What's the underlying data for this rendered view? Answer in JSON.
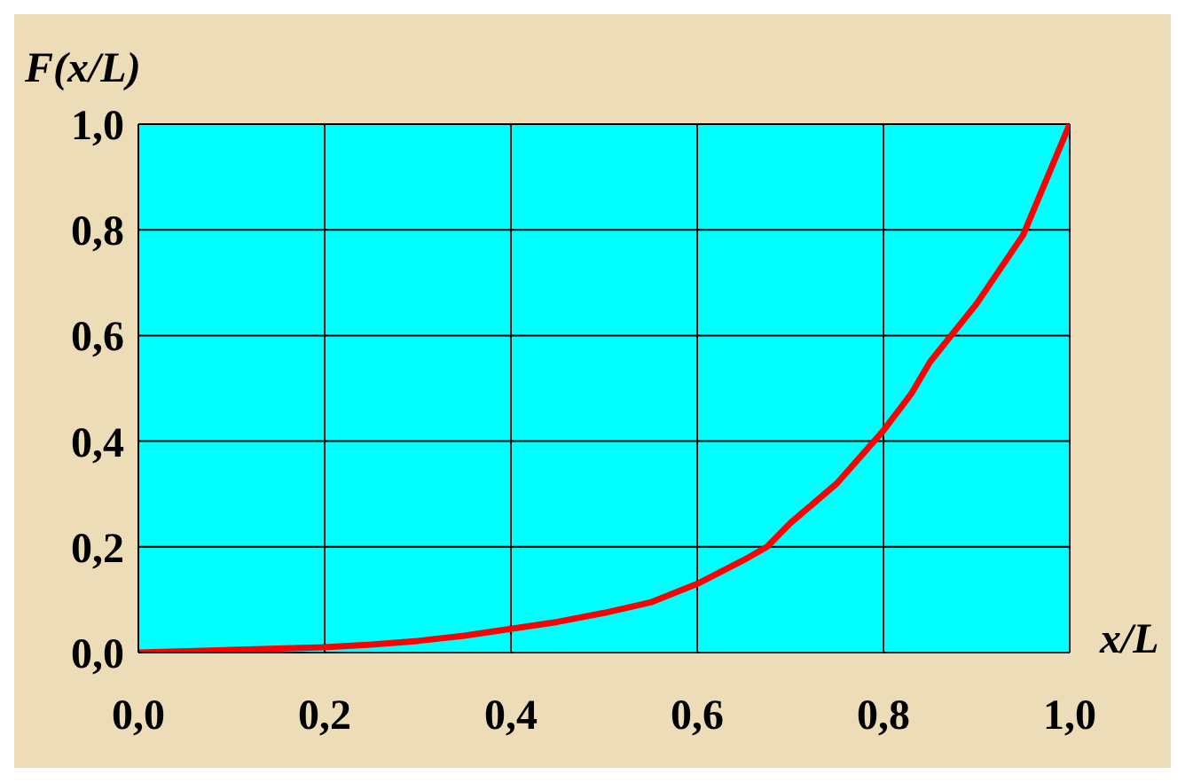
{
  "chart_data": {
    "type": "line",
    "xlabel": "x/L",
    "ylabel": "F(x/L)",
    "x": [
      0,
      0.1,
      0.2,
      0.25,
      0.3,
      0.35,
      0.4,
      0.45,
      0.5,
      0.55,
      0.6,
      0.65,
      0.675,
      0.7,
      0.75,
      0.8,
      0.83,
      0.85,
      0.9,
      0.95,
      1
    ],
    "series": [
      {
        "color": "#ff0000",
        "values": [
          0,
          0.005,
          0.01,
          0.015,
          0.022,
          0.032,
          0.045,
          0.058,
          0.075,
          0.095,
          0.13,
          0.175,
          0.2,
          0.245,
          0.32,
          0.42,
          0.49,
          0.55,
          0.66,
          0.79,
          1
        ]
      }
    ],
    "xlim": [
      0,
      1
    ],
    "ylim": [
      0,
      1
    ],
    "xticks": [
      {
        "value": 0,
        "label": "0,0"
      },
      {
        "value": 0.2,
        "label": "0,2"
      },
      {
        "value": 0.4,
        "label": "0,4"
      },
      {
        "value": 0.6,
        "label": "0,6"
      },
      {
        "value": 0.8,
        "label": "0,8"
      },
      {
        "value": 1,
        "label": "1,0"
      }
    ],
    "yticks": [
      {
        "value": 0,
        "label": "0,0"
      },
      {
        "value": 0.2,
        "label": "0,2"
      },
      {
        "value": 0.4,
        "label": "0,4"
      },
      {
        "value": 0.6,
        "label": "0,6"
      },
      {
        "value": 0.8,
        "label": "0,8"
      },
      {
        "value": 1,
        "label": "1,0"
      }
    ],
    "grid": true,
    "marker": "none",
    "line_style": "solid"
  }
}
